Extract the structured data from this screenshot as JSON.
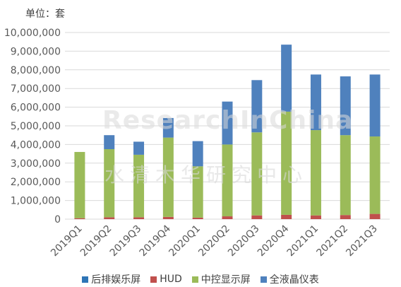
{
  "unit_label": "单位：套",
  "watermark": "ResearchInChina",
  "watermark_cn": "水清木华研究中心",
  "colors": {
    "rear_entertainment": "#2e75b6",
    "hud": "#c0504d",
    "center_display": "#9bbb59",
    "lcd_cluster": "#4f81bd"
  },
  "chart_data": {
    "type": "bar",
    "stacked": true,
    "categories": [
      "2019Q1",
      "2019Q2",
      "2019Q3",
      "2019Q4",
      "2020Q1",
      "2020Q2",
      "2020Q3",
      "2020Q4",
      "2021Q1",
      "2021Q2",
      "2021Q3"
    ],
    "series": [
      {
        "name": "后排娱乐屏",
        "color": "#2e75b6",
        "values": [
          0,
          0,
          0,
          0,
          0,
          0,
          0,
          0,
          0,
          0,
          0
        ]
      },
      {
        "name": "HUD",
        "color": "#c0504d",
        "values": [
          50000,
          100000,
          100000,
          120000,
          80000,
          150000,
          200000,
          230000,
          200000,
          220000,
          280000
        ]
      },
      {
        "name": "中控显示屏",
        "color": "#9bbb59",
        "values": [
          3550000,
          3650000,
          3350000,
          4250000,
          2750000,
          3850000,
          4450000,
          5530000,
          4570000,
          4280000,
          4150000
        ]
      },
      {
        "name": "全液晶仪表",
        "color": "#4f81bd",
        "values": [
          0,
          750000,
          700000,
          1050000,
          1350000,
          2300000,
          2800000,
          3590000,
          2980000,
          3150000,
          3320000
        ]
      }
    ],
    "ylim": [
      0,
      10000000
    ],
    "ytick_step": 1000000,
    "yticks": [
      "0",
      "1,000,000",
      "2,000,000",
      "3,000,000",
      "4,000,000",
      "5,000,000",
      "6,000,000",
      "7,000,000",
      "8,000,000",
      "9,000,000",
      "10,000,000"
    ],
    "grid": true,
    "legend_position": "bottom"
  }
}
